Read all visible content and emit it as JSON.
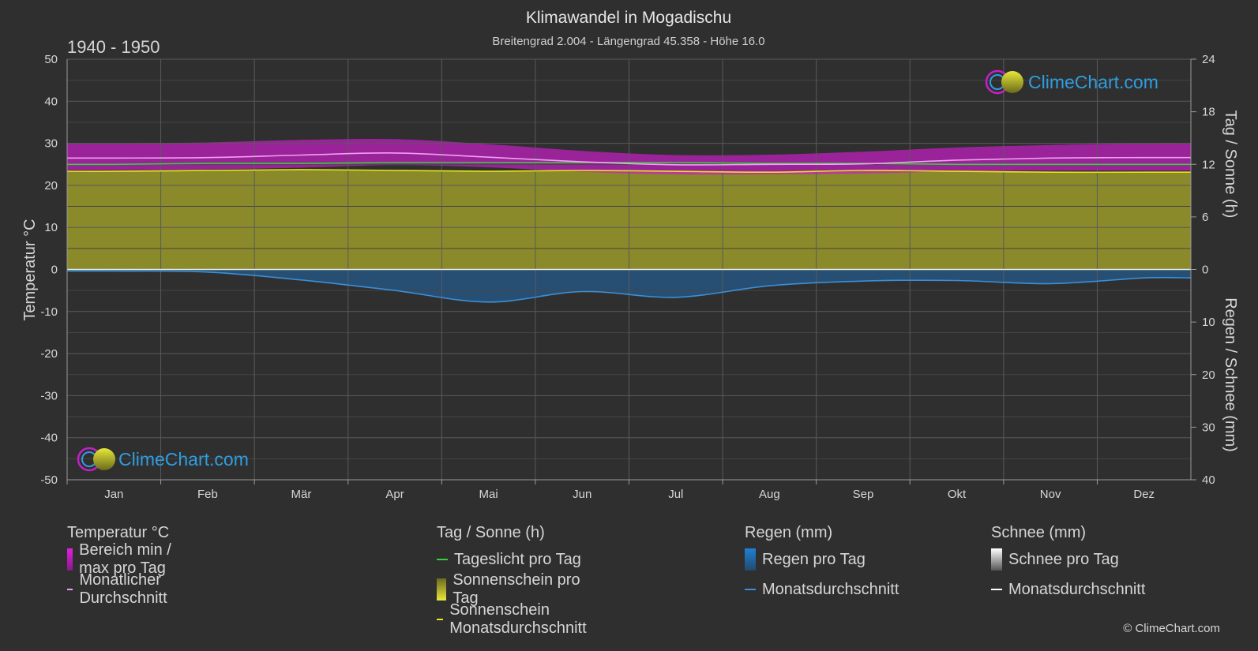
{
  "header": {
    "title": "Klimawandel in Mogadischu",
    "subtitle": "Breitengrad 2.004 - Längengrad 45.358 - Höhe 16.0",
    "period": "1940 - 1950"
  },
  "logo": {
    "text": "ClimeChart.com"
  },
  "copyright": "© ClimeChart.com",
  "chart_data": {
    "type": "area",
    "months": [
      "Jan",
      "Feb",
      "Mär",
      "Apr",
      "Mai",
      "Jun",
      "Jul",
      "Aug",
      "Sep",
      "Okt",
      "Nov",
      "Dez"
    ],
    "axes": {
      "left": {
        "label": "Temperatur °C",
        "range": [
          -50,
          50
        ],
        "ticks": [
          50,
          40,
          30,
          20,
          10,
          0,
          -10,
          -20,
          -30,
          -40,
          -50
        ]
      },
      "right_top": {
        "label": "Tag / Sonne (h)",
        "range": [
          0,
          24
        ],
        "ticks": [
          24,
          18,
          12,
          6,
          0
        ]
      },
      "right_bottom": {
        "label": "Regen / Schnee (mm)",
        "range": [
          0,
          40
        ],
        "ticks": [
          0,
          10,
          20,
          30,
          40
        ]
      }
    },
    "grid": true,
    "series": [
      {
        "key": "temp_max",
        "values": [
          30.0,
          30.2,
          30.8,
          31.0,
          29.8,
          28.2,
          27.2,
          27.3,
          28.0,
          29.0,
          29.6,
          30.0
        ]
      },
      {
        "key": "temp_min",
        "values": [
          23.6,
          23.8,
          24.2,
          24.8,
          24.3,
          23.2,
          22.6,
          22.6,
          22.8,
          23.3,
          23.5,
          23.5
        ]
      },
      {
        "key": "temp_avg",
        "values": [
          26.5,
          26.6,
          27.2,
          27.7,
          26.7,
          25.6,
          24.9,
          25.0,
          25.1,
          26.0,
          26.5,
          26.6
        ]
      },
      {
        "key": "daylight",
        "values": [
          12.0,
          12.1,
          12.1,
          12.2,
          12.2,
          12.2,
          12.2,
          12.1,
          12.1,
          12.0,
          12.0,
          12.0
        ]
      },
      {
        "key": "sunshine",
        "values": [
          11.2,
          11.3,
          11.4,
          11.3,
          11.2,
          11.3,
          11.2,
          11.1,
          11.3,
          11.2,
          11.1,
          11.1
        ]
      },
      {
        "key": "rain_avg",
        "values": [
          0.3,
          0.5,
          2.0,
          4.0,
          6.2,
          4.2,
          5.3,
          3.1,
          2.2,
          2.1,
          2.7,
          1.6
        ]
      },
      {
        "key": "snow_avg",
        "values": [
          0,
          0,
          0,
          0,
          0,
          0,
          0,
          0,
          0,
          0,
          0,
          0
        ]
      }
    ]
  },
  "legend": {
    "temperature": {
      "title": "Temperatur °C",
      "range": "Bereich min / max pro Tag",
      "avg": "Monatlicher Durchschnitt"
    },
    "sun": {
      "title": "Tag / Sonne (h)",
      "daylight": "Tageslicht pro Tag",
      "sunshine": "Sonnenschein pro Tag",
      "sunshine_avg": "Sonnenschein Monatsdurchschnitt"
    },
    "rain": {
      "title": "Regen (mm)",
      "per_day": "Regen pro Tag",
      "avg": "Monatsdurchschnitt"
    },
    "snow": {
      "title": "Schnee (mm)",
      "per_day": "Schnee pro Tag",
      "avg": "Monatsdurchschnitt"
    }
  },
  "colors": {
    "background": "#2f2f2f",
    "grid": "#5a5a5a",
    "temp_range": "#c81ec8",
    "temp_avg": "#f0a0f0",
    "daylight": "#36d136",
    "sunshine_fill": "#a9a92a",
    "sunshine_avg": "#e6e619",
    "rain": "#1e78c8",
    "rain_avg": "#3a8fd8",
    "snow": "#ffffff",
    "logo": "#2f9de0"
  }
}
